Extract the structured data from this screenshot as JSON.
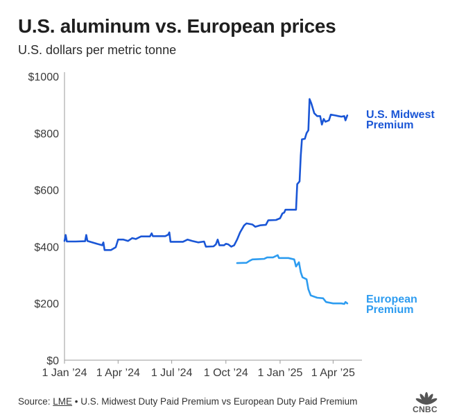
{
  "title": "U.S. aluminum vs. European prices",
  "subtitle": "U.S. dollars per metric tonne",
  "source": {
    "prefix": "Source: ",
    "link": "LME",
    "rest": " • U.S. Midwest Duty Paid Premium vs European Duty Paid Premium"
  },
  "logo": {
    "name": "CNBC",
    "icon": "peacock-icon"
  },
  "chart_data": {
    "type": "line",
    "ylim": [
      0,
      1000
    ],
    "yticks": [
      {
        "value": 0,
        "label": "$0"
      },
      {
        "value": 200,
        "label": "$200"
      },
      {
        "value": 400,
        "label": "$400"
      },
      {
        "value": 600,
        "label": "$600"
      },
      {
        "value": 800,
        "label": "$800"
      },
      {
        "value": 1000,
        "label": "$1000"
      }
    ],
    "xlim": [
      "2024-01-01",
      "2025-05-20"
    ],
    "xticks": [
      {
        "date": "2024-01-01",
        "label": "1 Jan ’24"
      },
      {
        "date": "2024-04-01",
        "label": "1 Apr ’24"
      },
      {
        "date": "2024-07-01",
        "label": "1 Jul ’24"
      },
      {
        "date": "2024-10-01",
        "label": "1 Oct ’24"
      },
      {
        "date": "2025-01-01",
        "label": "1 Jan ’25"
      },
      {
        "date": "2025-04-01",
        "label": "1 Apr ’25"
      }
    ],
    "grid": {
      "horizontal": false,
      "vertical": false
    },
    "colors": {
      "us": "#1a56d6",
      "europe": "#2d9cf0",
      "axis": "#9a9a9a",
      "tick_text": "#3a3a3a"
    },
    "series": [
      {
        "name": "U.S. Midwest\nPremium",
        "color": "#1a56d6",
        "points": [
          [
            "2024-01-01",
            420
          ],
          [
            "2024-01-03",
            441
          ],
          [
            "2024-01-05",
            418
          ],
          [
            "2024-01-20",
            418
          ],
          [
            "2024-02-05",
            419
          ],
          [
            "2024-02-07",
            441
          ],
          [
            "2024-02-09",
            420
          ],
          [
            "2024-02-25",
            410
          ],
          [
            "2024-03-05",
            405
          ],
          [
            "2024-03-07",
            415
          ],
          [
            "2024-03-09",
            388
          ],
          [
            "2024-03-20",
            388
          ],
          [
            "2024-03-28",
            398
          ],
          [
            "2024-04-01",
            425
          ],
          [
            "2024-04-10",
            425
          ],
          [
            "2024-04-18",
            420
          ],
          [
            "2024-04-25",
            430
          ],
          [
            "2024-05-01",
            427
          ],
          [
            "2024-05-10",
            436
          ],
          [
            "2024-05-25",
            436
          ],
          [
            "2024-05-28",
            447
          ],
          [
            "2024-05-30",
            437
          ],
          [
            "2024-06-20",
            437
          ],
          [
            "2024-06-25",
            442
          ],
          [
            "2024-06-27",
            450
          ],
          [
            "2024-06-29",
            417
          ],
          [
            "2024-07-20",
            417
          ],
          [
            "2024-07-28",
            425
          ],
          [
            "2024-08-05",
            420
          ],
          [
            "2024-08-15",
            415
          ],
          [
            "2024-08-25",
            418
          ],
          [
            "2024-08-28",
            400
          ],
          [
            "2024-09-10",
            401
          ],
          [
            "2024-09-14",
            408
          ],
          [
            "2024-09-17",
            425
          ],
          [
            "2024-09-20",
            405
          ],
          [
            "2024-09-28",
            405
          ],
          [
            "2024-10-01",
            410
          ],
          [
            "2024-10-05",
            408
          ],
          [
            "2024-10-10",
            400
          ],
          [
            "2024-10-15",
            405
          ],
          [
            "2024-10-20",
            425
          ],
          [
            "2024-10-25",
            450
          ],
          [
            "2024-11-01",
            475
          ],
          [
            "2024-11-05",
            482
          ],
          [
            "2024-11-15",
            478
          ],
          [
            "2024-11-20",
            470
          ],
          [
            "2024-11-28",
            475
          ],
          [
            "2024-12-08",
            477
          ],
          [
            "2024-12-12",
            493
          ],
          [
            "2024-12-25",
            494
          ],
          [
            "2025-01-01",
            500
          ],
          [
            "2025-01-05",
            517
          ],
          [
            "2025-01-08",
            520
          ],
          [
            "2025-01-10",
            530
          ],
          [
            "2025-01-28",
            530
          ],
          [
            "2025-01-30",
            620
          ],
          [
            "2025-02-01",
            625
          ],
          [
            "2025-02-03",
            630
          ],
          [
            "2025-02-05",
            720
          ],
          [
            "2025-02-07",
            778
          ],
          [
            "2025-02-12",
            780
          ],
          [
            "2025-02-15",
            800
          ],
          [
            "2025-02-18",
            810
          ],
          [
            "2025-02-20",
            920
          ],
          [
            "2025-02-23",
            905
          ],
          [
            "2025-02-28",
            870
          ],
          [
            "2025-03-05",
            860
          ],
          [
            "2025-03-10",
            860
          ],
          [
            "2025-03-13",
            830
          ],
          [
            "2025-03-16",
            850
          ],
          [
            "2025-03-19",
            840
          ],
          [
            "2025-03-25",
            845
          ],
          [
            "2025-03-28",
            865
          ],
          [
            "2025-04-05",
            862
          ],
          [
            "2025-04-10",
            860
          ],
          [
            "2025-04-15",
            858
          ],
          [
            "2025-04-20",
            860
          ],
          [
            "2025-04-22",
            845
          ],
          [
            "2025-04-25",
            862
          ]
        ]
      },
      {
        "name": "European\nPremium",
        "color": "#2d9cf0",
        "points": [
          [
            "2024-10-20",
            342
          ],
          [
            "2024-11-05",
            343
          ],
          [
            "2024-11-10",
            350
          ],
          [
            "2024-11-15",
            355
          ],
          [
            "2024-11-25",
            356
          ],
          [
            "2024-12-05",
            357
          ],
          [
            "2024-12-10",
            362
          ],
          [
            "2024-12-20",
            362
          ],
          [
            "2024-12-28",
            370
          ],
          [
            "2024-12-30",
            360
          ],
          [
            "2025-01-15",
            360
          ],
          [
            "2025-01-25",
            355
          ],
          [
            "2025-01-28",
            330
          ],
          [
            "2025-02-02",
            345
          ],
          [
            "2025-02-05",
            310
          ],
          [
            "2025-02-08",
            292
          ],
          [
            "2025-02-15",
            285
          ],
          [
            "2025-02-18",
            250
          ],
          [
            "2025-02-22",
            228
          ],
          [
            "2025-03-05",
            220
          ],
          [
            "2025-03-15",
            218
          ],
          [
            "2025-03-20",
            205
          ],
          [
            "2025-04-01",
            200
          ],
          [
            "2025-04-15",
            200
          ],
          [
            "2025-04-20",
            198
          ],
          [
            "2025-04-22",
            205
          ],
          [
            "2025-04-25",
            200
          ]
        ]
      }
    ]
  }
}
